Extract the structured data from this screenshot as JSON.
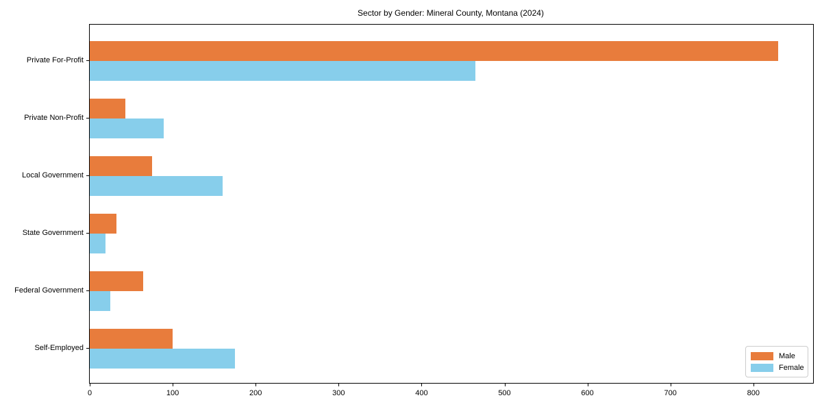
{
  "chart_data": {
    "type": "bar",
    "orientation": "horizontal",
    "title": "Sector by Gender: Mineral County, Montana (2024)",
    "categories": [
      "Private For-Profit",
      "Private Non-Profit",
      "Local Government",
      "State Government",
      "Federal Government",
      "Self-Employed"
    ],
    "series": [
      {
        "name": "Male",
        "color": "#e87c3c",
        "values": [
          830,
          43,
          75,
          32,
          64,
          100
        ]
      },
      {
        "name": "Female",
        "color": "#87ceeb",
        "values": [
          465,
          89,
          160,
          19,
          25,
          175
        ]
      }
    ],
    "xlabel": "",
    "ylabel": "",
    "xlim": [
      0,
      872
    ],
    "xticks": [
      0,
      100,
      200,
      300,
      400,
      500,
      600,
      700,
      800
    ],
    "grid": false,
    "legend": {
      "position": "lower right",
      "entries": [
        "Male",
        "Female"
      ]
    },
    "colors": {
      "axis": "#000000",
      "legend_border": "#cccccc",
      "background": "#ffffff"
    }
  }
}
